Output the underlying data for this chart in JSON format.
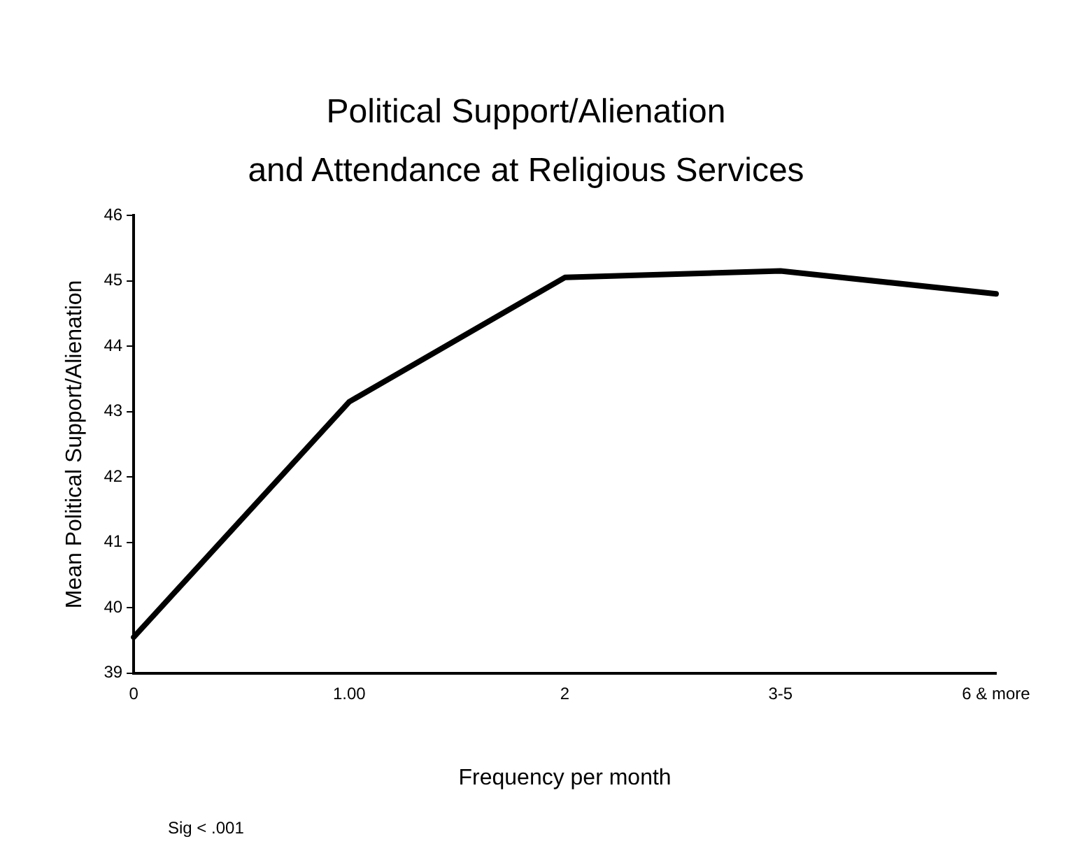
{
  "chart_data": {
    "type": "line",
    "title": "Political Support/Alienation\nand Attendance at Religious Services",
    "xlabel": "Frequency per month",
    "ylabel": "Mean Political Support/Alienation",
    "categories": [
      "0",
      "1.00",
      "2",
      "3-5",
      "6 & more"
    ],
    "series": [
      {
        "color": "#000000",
        "values": [
          39.55,
          43.15,
          45.05,
          45.15,
          44.8
        ]
      }
    ],
    "ylim": [
      39,
      46
    ],
    "yticks": [
      39,
      40,
      41,
      42,
      43,
      44,
      45,
      46
    ],
    "grid": false,
    "legend": false,
    "marker": "none",
    "line_style": "solid",
    "annotations": [
      "Sig < .001"
    ]
  }
}
